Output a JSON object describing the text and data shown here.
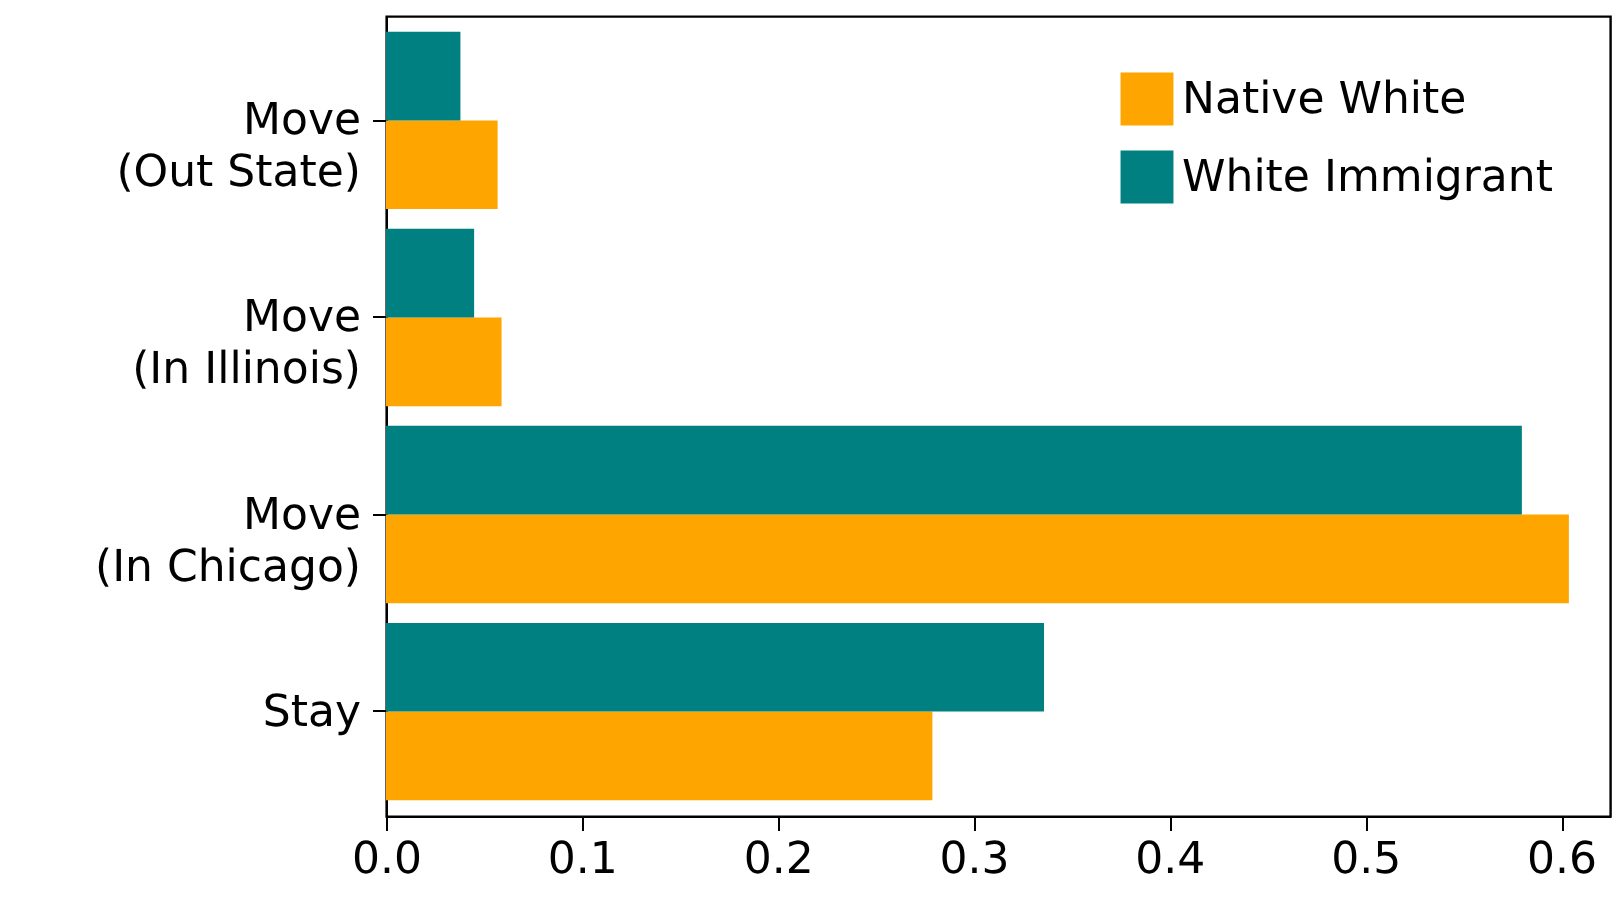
{
  "chart_data": {
    "type": "bar",
    "orientation": "horizontal",
    "categories": [
      "Move\n(Out State)",
      "Move\n(In Illinois)",
      "Move\n(In Chicago)",
      "Stay"
    ],
    "series": [
      {
        "name": "Native White",
        "color": "#ffa500",
        "values": [
          0.057,
          0.059,
          0.604,
          0.279
        ]
      },
      {
        "name": "White Immigrant",
        "color": "#008080",
        "values": [
          0.038,
          0.045,
          0.58,
          0.336
        ]
      }
    ],
    "xlim": [
      0,
      0.625
    ],
    "xticks": [
      {
        "value": 0,
        "label": "0.0"
      },
      {
        "value": 0.1,
        "label": "0.1"
      },
      {
        "value": 0.2,
        "label": "0.2"
      },
      {
        "value": 0.3,
        "label": "0.3"
      },
      {
        "value": 0.4,
        "label": "0.4"
      },
      {
        "value": 0.5,
        "label": "0.5"
      },
      {
        "value": 0.6,
        "label": "0.6"
      }
    ],
    "legend": "top right",
    "grid": false
  }
}
